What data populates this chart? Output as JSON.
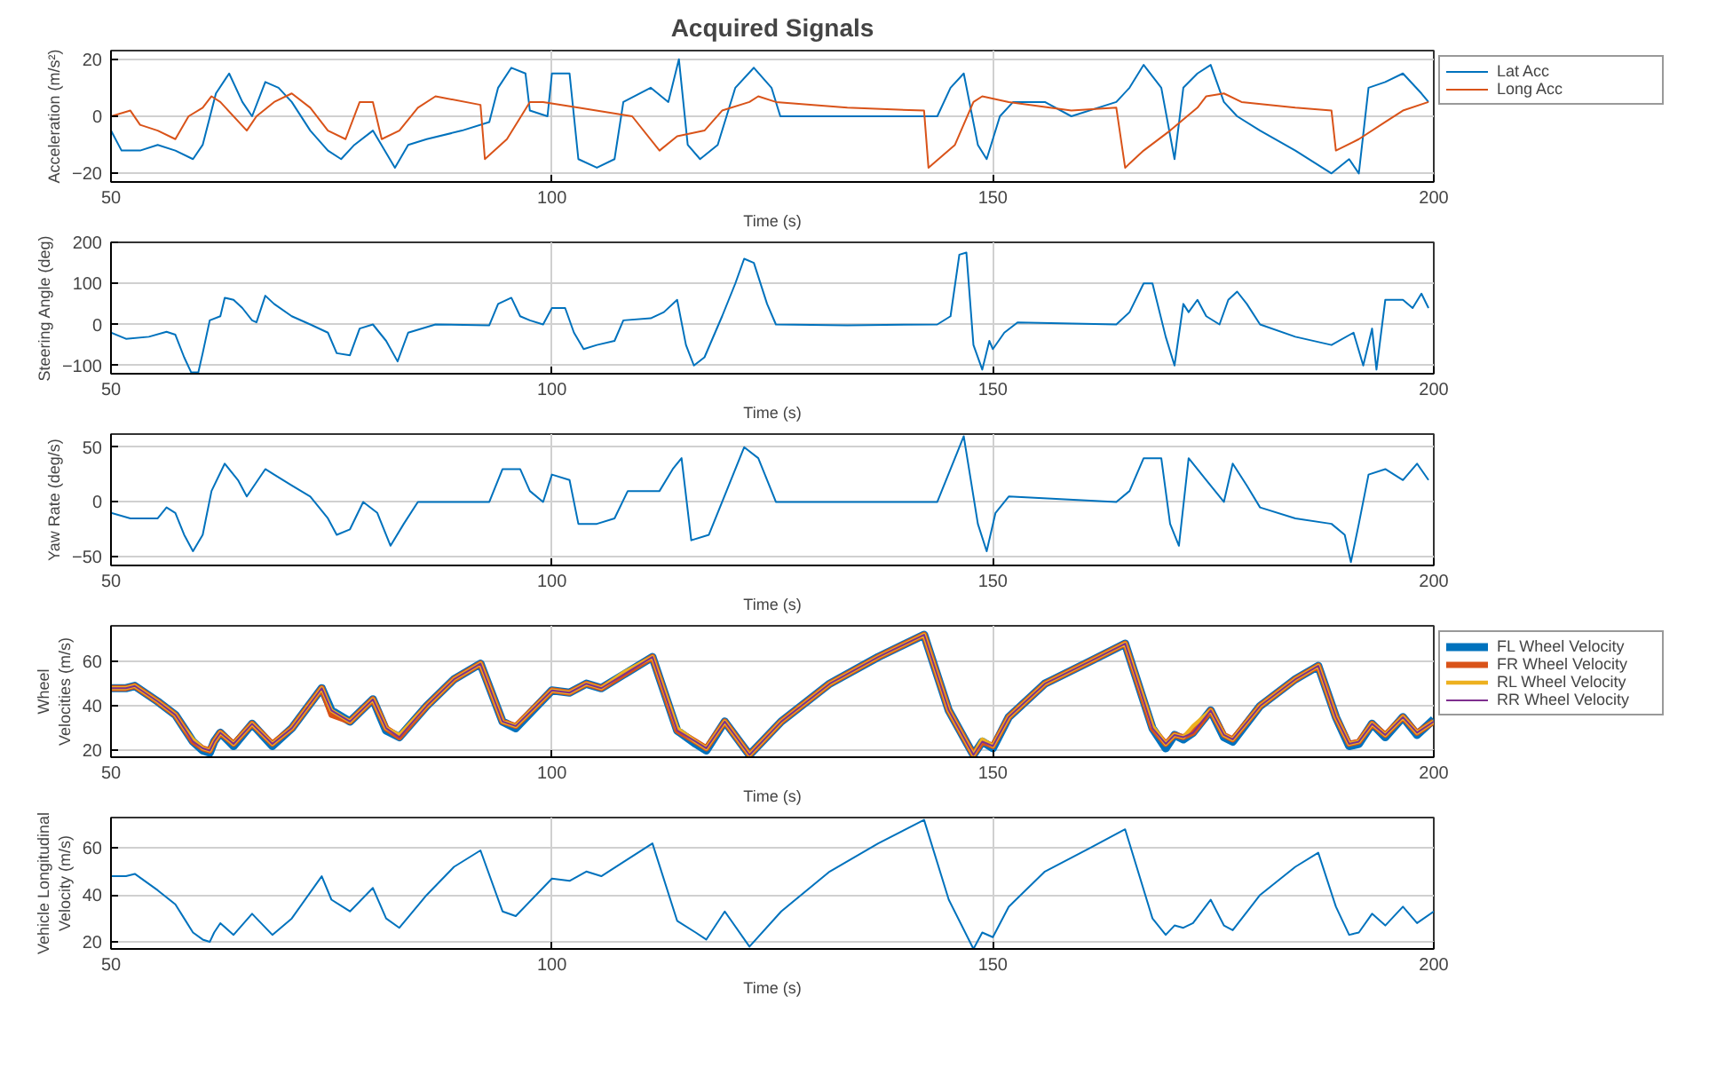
{
  "chart_data": [
    {
      "type": "line",
      "title": "Acquired Signals",
      "xlabel": "Time (s)",
      "ylabel": "Acceleration (m/s²)",
      "xlim": [
        50,
        200
      ],
      "xticks": [
        50,
        100,
        150,
        200
      ],
      "ylim": [
        -23,
        23
      ],
      "yticks": [
        -20,
        0,
        20
      ],
      "grid": true,
      "legend": "top right",
      "series": [
        {
          "name": "Lat Acc",
          "color": "#0072bd",
          "x": [
            50,
            51.2,
            53.3,
            55.3,
            57.3,
            59.3,
            60.4,
            61.9,
            63.4,
            64.9,
            66,
            67.5,
            69,
            70.5,
            72.6,
            74.6,
            76.1,
            77.6,
            79.7,
            82.2,
            83.7,
            85.8,
            89.8,
            92.9,
            93.9,
            95.4,
            97,
            97.5,
            99.5,
            100,
            102,
            103,
            105.1,
            107.1,
            108.1,
            111.2,
            113.2,
            114.4,
            115.4,
            116.8,
            118.8,
            120.8,
            122.9,
            124.9,
            125.9,
            133.5,
            143.7,
            145.2,
            146.7,
            148.3,
            149.3,
            150.8,
            152.3,
            155.9,
            158.9,
            164,
            165.5,
            167.1,
            169.1,
            170.6,
            171.6,
            173.2,
            174.7,
            176.2,
            177.7,
            180.3,
            184.3,
            188.4,
            190.4,
            191.5,
            192.6,
            194.5,
            196.5,
            198.6,
            199.4
          ],
          "values": [
            -5,
            -12,
            -12,
            -10,
            -12,
            -15,
            -10,
            8,
            15,
            5,
            0,
            12,
            10,
            5,
            -5,
            -12,
            -15,
            -10,
            -5,
            -18,
            -10,
            -8,
            -5,
            -2,
            10,
            17,
            15,
            2,
            0,
            15,
            15,
            -15,
            -18,
            -15,
            5,
            10,
            5,
            20,
            -10,
            -15,
            -10,
            10,
            17,
            10,
            0,
            0,
            0,
            10,
            15,
            -10,
            -15,
            0,
            5,
            5,
            0,
            5,
            10,
            18,
            10,
            -15,
            10,
            15,
            18,
            5,
            0,
            -5,
            -12,
            -20,
            -15,
            -20,
            10,
            12,
            15,
            8,
            5
          ]
        },
        {
          "name": "Long Acc",
          "color": "#d95319",
          "x": [
            50,
            52.2,
            53.3,
            55.3,
            57.3,
            58.8,
            60.4,
            61.4,
            62.4,
            65.4,
            66.5,
            68.5,
            70.5,
            72.6,
            74.6,
            76.6,
            78.2,
            79.7,
            80.7,
            82.7,
            84.8,
            86.8,
            91.9,
            92.4,
            94.9,
            97.5,
            99,
            103,
            109.1,
            112.2,
            114.2,
            117.3,
            119.3,
            122.4,
            123.4,
            125.4,
            133.5,
            142.2,
            142.7,
            145.7,
            147.8,
            148.8,
            151.8,
            158.9,
            164,
            165,
            167.1,
            170.1,
            173.2,
            174.2,
            176.2,
            178.2,
            184.3,
            188.4,
            188.9,
            191.5,
            194.5,
            196.5,
            199.4
          ],
          "values": [
            0,
            2,
            -3,
            -5,
            -8,
            0,
            3,
            7,
            5,
            -5,
            0,
            5,
            8,
            3,
            -5,
            -8,
            5,
            5,
            -8,
            -5,
            3,
            7,
            4,
            -15,
            -8,
            5,
            5,
            3,
            0,
            -12,
            -7,
            -5,
            2,
            5,
            7,
            5,
            3,
            2,
            -18,
            -10,
            5,
            7,
            5,
            2,
            3,
            -18,
            -12,
            -5,
            3,
            7,
            8,
            5,
            3,
            2,
            -12,
            -8,
            -2,
            2,
            5
          ]
        }
      ]
    },
    {
      "type": "line",
      "xlabel": "Time (s)",
      "ylabel": "Steering Angle (deg)",
      "xlim": [
        50,
        200
      ],
      "xticks": [
        50,
        100,
        150,
        200
      ],
      "ylim": [
        -120,
        200
      ],
      "yticks": [
        -100,
        0,
        100,
        200
      ],
      "grid": true,
      "series": [
        {
          "color": "#0072bd",
          "x": [
            50,
            51.7,
            54.3,
            56.3,
            57.3,
            58.3,
            59.1,
            59.9,
            60.4,
            61.2,
            62.4,
            62.9,
            63.9,
            64.9,
            66,
            66.5,
            67.5,
            68.5,
            70.5,
            72.6,
            74.6,
            75.6,
            77.1,
            78.2,
            79.7,
            81.2,
            82.5,
            83.7,
            86.8,
            92.9,
            93.9,
            95.4,
            96.4,
            97.5,
            99,
            100,
            101.5,
            102.5,
            103.6,
            105.1,
            107.1,
            108.1,
            111.2,
            112.7,
            114.2,
            115.2,
            116.1,
            117.3,
            119.3,
            120.8,
            121.8,
            122.9,
            124.4,
            125.4,
            133.5,
            143.7,
            145.2,
            146.2,
            147,
            147.8,
            148.8,
            149.6,
            150,
            151.3,
            152.8,
            164,
            165.5,
            167.1,
            168.1,
            169.6,
            170.6,
            171.6,
            172.2,
            173.2,
            174.2,
            175.7,
            176.7,
            177.7,
            178.8,
            180.3,
            184.3,
            188.4,
            190.9,
            192,
            193,
            193.5,
            194.5,
            196.5,
            197.6,
            198.6,
            199.4
          ],
          "values": [
            -20,
            -35,
            -30,
            -18,
            -25,
            -80,
            -117,
            -117,
            -70,
            10,
            20,
            65,
            60,
            40,
            10,
            5,
            70,
            50,
            20,
            0,
            -20,
            -70,
            -75,
            -10,
            0,
            -40,
            -90,
            -20,
            0,
            -2,
            50,
            65,
            20,
            10,
            0,
            40,
            40,
            -20,
            -60,
            -50,
            -40,
            10,
            15,
            30,
            60,
            -50,
            -100,
            -80,
            20,
            100,
            160,
            150,
            50,
            0,
            -2,
            0,
            20,
            170,
            175,
            -50,
            -110,
            -40,
            -60,
            -20,
            5,
            0,
            30,
            100,
            100,
            -30,
            -100,
            50,
            30,
            60,
            20,
            0,
            60,
            80,
            50,
            0,
            -30,
            -50,
            -20,
            -100,
            -10,
            -110,
            60,
            60,
            40,
            75,
            40
          ]
        }
      ]
    },
    {
      "type": "line",
      "xlabel": "Time (s)",
      "ylabel": "Yaw Rate (deg/s)",
      "xlim": [
        50,
        200
      ],
      "xticks": [
        50,
        100,
        150,
        200
      ],
      "ylim": [
        -58,
        62
      ],
      "yticks": [
        -50,
        0,
        50
      ],
      "grid": true,
      "series": [
        {
          "color": "#0072bd",
          "x": [
            50,
            52.2,
            55.3,
            56.3,
            57.3,
            58.3,
            59.3,
            60.4,
            61.4,
            62.9,
            64.4,
            65.4,
            67.5,
            68.5,
            70.5,
            72.6,
            74.6,
            75.6,
            77.1,
            78.6,
            80.2,
            81.7,
            83.2,
            84.8,
            92.9,
            94.4,
            96.4,
            97.5,
            99,
            100,
            102,
            103,
            105.1,
            107.1,
            108.6,
            112.2,
            113.7,
            114.7,
            115.8,
            117.8,
            119.8,
            121.8,
            123.4,
            125.4,
            143.7,
            145.7,
            146.7,
            148.3,
            149.3,
            150.3,
            151.8,
            164,
            165.5,
            167.1,
            169.1,
            170.1,
            171.1,
            172.2,
            174.2,
            176.2,
            177.2,
            178.8,
            180.3,
            184.3,
            188.4,
            189.9,
            190.6,
            191.5,
            192.6,
            194.5,
            196.5,
            198.1,
            199.4
          ],
          "values": [
            -10,
            -15,
            -15,
            -5,
            -10,
            -30,
            -45,
            -30,
            10,
            35,
            20,
            5,
            30,
            25,
            15,
            5,
            -15,
            -30,
            -25,
            0,
            -10,
            -40,
            -20,
            0,
            0,
            30,
            30,
            10,
            0,
            25,
            20,
            -20,
            -20,
            -15,
            10,
            10,
            30,
            40,
            -35,
            -30,
            10,
            50,
            40,
            0,
            0,
            40,
            60,
            -20,
            -45,
            -10,
            5,
            0,
            10,
            40,
            40,
            -20,
            -40,
            40,
            20,
            0,
            35,
            15,
            -5,
            -15,
            -20,
            -30,
            -55,
            -20,
            25,
            30,
            20,
            35,
            20
          ]
        }
      ]
    },
    {
      "type": "line",
      "xlabel": "Time (s)",
      "ylabel": "Wheel Velocities (m/s)",
      "xlim": [
        50,
        200
      ],
      "xticks": [
        50,
        100,
        150,
        200
      ],
      "ylim": [
        17,
        76
      ],
      "yticks": [
        20,
        40,
        60
      ],
      "grid": true,
      "legend": "top right",
      "series": [
        {
          "name": "FL Wheel Velocity",
          "color": "#0072bd",
          "x": [
            50,
            51.7,
            52.7,
            55.3,
            57.3,
            58.3,
            59.3,
            60.4,
            61.2,
            61.7,
            62.4,
            63.9,
            66,
            68.3,
            70.5,
            73.9,
            75,
            77.1,
            79.7,
            81.2,
            82.7,
            85.8,
            88.9,
            91.9,
            94.4,
            95.9,
            100,
            102,
            103.9,
            105.6,
            108.1,
            111.4,
            114.2,
            116.3,
            117.5,
            119.6,
            122.4,
            126,
            131.5,
            137,
            142.2,
            145,
            147.8,
            148.8,
            150,
            151.8,
            155.9,
            161,
            165,
            168.1,
            169.6,
            170.6,
            171.6,
            172.7,
            174.7,
            176.2,
            177.2,
            180.3,
            184.3,
            186.9,
            188.9,
            190.4,
            191.5,
            193,
            194.5,
            196.5,
            198.1,
            200
          ],
          "values": [
            48,
            48,
            49,
            42,
            36,
            30,
            24,
            20,
            19,
            24,
            28,
            22,
            32,
            22,
            30,
            48,
            38,
            33,
            43,
            29,
            26,
            40,
            52,
            59,
            33,
            30,
            47,
            46,
            50,
            48,
            54,
            62,
            29,
            23,
            20,
            33,
            18,
            33,
            50,
            62,
            72,
            38,
            18,
            24,
            21,
            35,
            50,
            60,
            68,
            30,
            21,
            27,
            25,
            28,
            38,
            26,
            24,
            40,
            52,
            58,
            35,
            22,
            23,
            32,
            26,
            35,
            27,
            34
          ]
        },
        {
          "name": "FR Wheel Velocity",
          "color": "#d95319",
          "x": [
            50,
            51.7,
            52.7,
            55.3,
            57.3,
            58.3,
            59.3,
            60.4,
            61.2,
            61.7,
            62.4,
            63.9,
            66,
            68.3,
            70.5,
            73.9,
            75,
            77.1,
            79.7,
            81.2,
            82.7,
            85.8,
            88.9,
            91.9,
            94.4,
            95.9,
            100,
            102,
            103.9,
            105.6,
            108.1,
            111.4,
            114.2,
            116.3,
            117.5,
            119.6,
            122.4,
            126,
            131.5,
            137,
            142.2,
            145,
            147.8,
            148.8,
            150,
            151.8,
            155.9,
            161,
            165,
            168.1,
            169.6,
            170.6,
            171.6,
            172.7,
            174.7,
            176.2,
            177.2,
            180.3,
            184.3,
            186.9,
            188.9,
            190.4,
            191.5,
            193,
            194.5,
            196.5,
            198.1,
            200
          ],
          "values": [
            48,
            48,
            49,
            42,
            36,
            30,
            24,
            21,
            20,
            24,
            28,
            23,
            32,
            23,
            30,
            48,
            36,
            33,
            43,
            30,
            26,
            40,
            52,
            59,
            33,
            31,
            47,
            46,
            50,
            48,
            54,
            62,
            29,
            24,
            21,
            33,
            18,
            33,
            50,
            62,
            72,
            38,
            18,
            24,
            22,
            35,
            50,
            60,
            68,
            30,
            23,
            27,
            26,
            28,
            38,
            27,
            25,
            40,
            52,
            58,
            35,
            23,
            24,
            32,
            27,
            35,
            28,
            33
          ]
        },
        {
          "name": "RL Wheel Velocity",
          "color": "#edb120",
          "x": [
            50,
            51.7,
            52.7,
            55.3,
            57.3,
            58.3,
            59.3,
            60.4,
            61.2,
            61.7,
            62.4,
            63.9,
            66,
            68.3,
            70.5,
            73.9,
            75,
            77.1,
            79.7,
            81.2,
            82.7,
            85.8,
            88.9,
            91.9,
            94.4,
            95.9,
            100,
            102,
            103.9,
            105.6,
            108.1,
            111.4,
            114.2,
            116.3,
            117.5,
            119.6,
            122.4,
            126,
            131.5,
            137,
            142.2,
            145,
            147.8,
            148.8,
            150,
            151.8,
            155.9,
            161,
            165,
            168.1,
            169.6,
            170.6,
            171.6,
            172.7,
            174.7,
            176.2,
            177.2,
            180.3,
            184.3,
            186.9,
            188.9,
            190.4,
            191.5,
            193,
            194.5,
            196.5,
            198.1,
            200
          ],
          "values": [
            48,
            48,
            49,
            42,
            36,
            30,
            25,
            21,
            20,
            24,
            28,
            23,
            32,
            23,
            30,
            48,
            38,
            33,
            43,
            30,
            27,
            40,
            52,
            59,
            33,
            31,
            47,
            46,
            50,
            48,
            55,
            62,
            30,
            24,
            21,
            33,
            18,
            33,
            50,
            62,
            72,
            38,
            18,
            25,
            22,
            35,
            50,
            60,
            68,
            31,
            23,
            27,
            26,
            31,
            38,
            27,
            25,
            40,
            52,
            58,
            35,
            23,
            24,
            32,
            27,
            35,
            28,
            33
          ]
        },
        {
          "name": "RR Wheel Velocity",
          "color": "#7e2f8e",
          "x": [
            50,
            51.7,
            52.7,
            55.3,
            57.3,
            58.3,
            59.3,
            60.4,
            61.2,
            61.7,
            62.4,
            63.9,
            66,
            68.3,
            70.5,
            73.9,
            75,
            77.1,
            79.7,
            81.2,
            82.7,
            85.8,
            88.9,
            91.9,
            94.4,
            95.9,
            100,
            102,
            103.9,
            105.6,
            108.1,
            111.4,
            114.2,
            116.3,
            117.5,
            119.6,
            122.4,
            126,
            131.5,
            137,
            142.2,
            145,
            147.8,
            148.8,
            150,
            151.8,
            155.9,
            161,
            165,
            168.1,
            169.6,
            170.6,
            171.6,
            172.7,
            174.7,
            176.2,
            177.2,
            180.3,
            184.3,
            186.9,
            188.9,
            190.4,
            191.5,
            193,
            194.5,
            196.5,
            198.1,
            200
          ],
          "values": [
            48,
            48,
            49,
            42,
            36,
            30,
            24,
            21,
            20,
            24,
            28,
            23,
            32,
            23,
            30,
            48,
            38,
            33,
            43,
            30,
            26,
            40,
            52,
            59,
            33,
            31,
            47,
            46,
            50,
            48,
            54,
            62,
            29,
            24,
            21,
            33,
            18,
            33,
            50,
            62,
            72,
            38,
            18,
            24,
            22,
            35,
            50,
            60,
            68,
            30,
            23,
            27,
            26,
            28,
            38,
            27,
            25,
            40,
            52,
            58,
            35,
            23,
            24,
            32,
            27,
            35,
            28,
            33
          ]
        }
      ]
    },
    {
      "type": "line",
      "xlabel": "Time (s)",
      "ylabel": "Vehicle Longitudinal Velocity (m/s)",
      "xlim": [
        50,
        200
      ],
      "xticks": [
        50,
        100,
        150,
        200
      ],
      "ylim": [
        17,
        73
      ],
      "yticks": [
        20,
        40,
        60
      ],
      "grid": true,
      "series": [
        {
          "color": "#0072bd",
          "x": [
            50,
            51.7,
            52.7,
            55.3,
            57.3,
            58.3,
            59.3,
            60.4,
            61.2,
            61.7,
            62.4,
            63.9,
            66,
            68.3,
            70.5,
            73.9,
            75,
            77.1,
            79.7,
            81.2,
            82.7,
            85.8,
            88.9,
            91.9,
            94.4,
            95.9,
            100,
            102,
            103.9,
            105.6,
            108.1,
            111.4,
            114.2,
            116.3,
            117.5,
            119.6,
            122.4,
            126,
            131.5,
            137,
            142.2,
            145,
            147.8,
            148.8,
            150,
            151.8,
            155.9,
            161,
            165,
            168.1,
            169.6,
            170.6,
            171.6,
            172.7,
            174.7,
            176.2,
            177.2,
            180.3,
            184.3,
            186.9,
            188.9,
            190.4,
            191.5,
            193,
            194.5,
            196.5,
            198.1,
            200
          ],
          "values": [
            48,
            48,
            49,
            42,
            36,
            30,
            24,
            21,
            20,
            24,
            28,
            23,
            32,
            23,
            30,
            48,
            38,
            33,
            43,
            30,
            26,
            40,
            52,
            59,
            33,
            31,
            47,
            46,
            50,
            48,
            54,
            62,
            29,
            24,
            21,
            33,
            18,
            33,
            50,
            62,
            72,
            38,
            17,
            24,
            22,
            35,
            50,
            60,
            68,
            30,
            23,
            27,
            26,
            28,
            38,
            27,
            25,
            40,
            52,
            58,
            35,
            23,
            24,
            32,
            27,
            35,
            28,
            33
          ]
        }
      ]
    }
  ]
}
